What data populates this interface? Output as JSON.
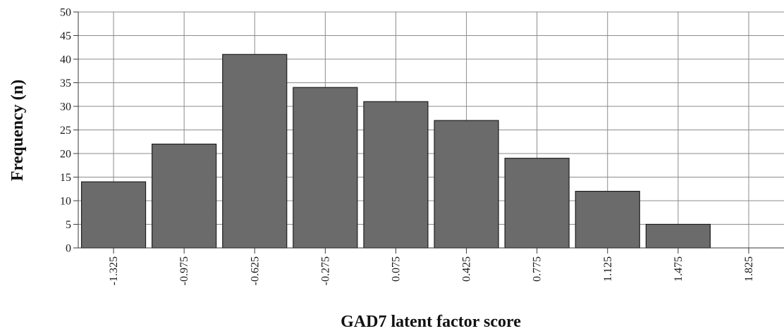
{
  "chart_data": {
    "type": "bar",
    "title": "",
    "xlabel": "GAD7 latent factor score",
    "ylabel": "Frequency (n)",
    "categories": [
      "-1.325",
      "-0.975",
      "-0.625",
      "-0.275",
      "0.075",
      "0.425",
      "0.775",
      "1.125",
      "1.475",
      "1.825"
    ],
    "values": [
      14,
      22,
      41,
      34,
      31,
      27,
      19,
      12,
      5,
      0
    ],
    "ylim": [
      0,
      50
    ],
    "yticks": [
      0,
      5,
      10,
      15,
      20,
      25,
      30,
      35,
      40,
      45,
      50
    ],
    "grid": true,
    "legend": "none",
    "bar_color": "#6b6b6b",
    "bar_edge_color": "#1e1e1e",
    "grid_color": "#8c8c8c",
    "axis_color": "#3a3a3a"
  }
}
